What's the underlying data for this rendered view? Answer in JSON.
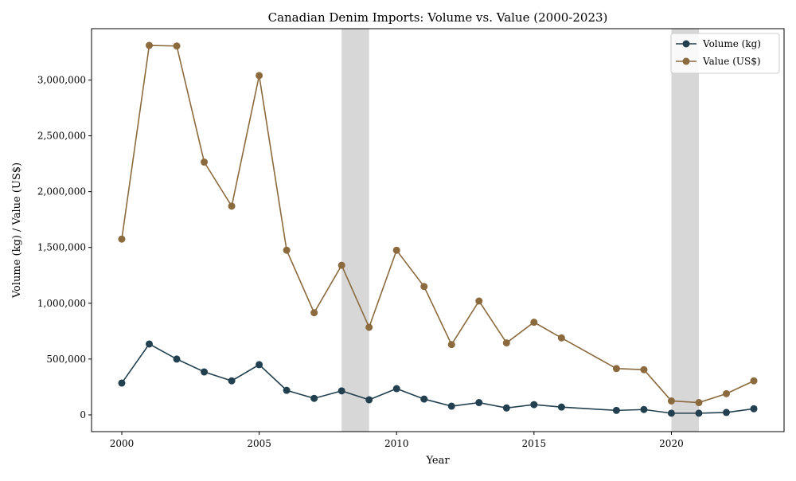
{
  "chart_data": {
    "type": "line",
    "title": "Canadian Denim Imports: Volume vs. Value (2000-2023)",
    "xlabel": "Year",
    "ylabel": "Volume (kg) / Value (US$)",
    "xlim": [
      1998.9,
      2024.1
    ],
    "ylim": [
      -150000,
      3460000
    ],
    "x_ticks": [
      2000,
      2005,
      2010,
      2015,
      2020
    ],
    "y_ticks": [
      0,
      500000,
      1000000,
      1500000,
      2000000,
      2500000,
      3000000
    ],
    "y_tick_labels": [
      "0",
      "500,000",
      "1,000,000",
      "1,500,000",
      "2,000,000",
      "2,500,000",
      "3,000,000"
    ],
    "grid": false,
    "legend_position": "top-right",
    "shaded_periods": [
      {
        "start": 2008,
        "end": 2009,
        "color": "#bdbdbd"
      },
      {
        "start": 2020,
        "end": 2021,
        "color": "#bdbdbd"
      }
    ],
    "series": [
      {
        "name": "Volume (kg)",
        "color": "#22404f",
        "x": [
          2000,
          2001,
          2002,
          2003,
          2004,
          2005,
          2006,
          2007,
          2008,
          2009,
          2010,
          2011,
          2012,
          2013,
          2014,
          2015,
          2016,
          2018,
          2019,
          2020,
          2021,
          2022,
          2023
        ],
        "values": [
          285000,
          635000,
          500000,
          385000,
          305000,
          450000,
          220000,
          148000,
          215000,
          135000,
          235000,
          142000,
          78000,
          110000,
          62000,
          92000,
          70000,
          40000,
          48000,
          15000,
          15000,
          22000,
          55000
        ]
      },
      {
        "name": "Value (US$)",
        "color": "#8b6a3e",
        "x": [
          2000,
          2001,
          2002,
          2003,
          2004,
          2005,
          2006,
          2007,
          2008,
          2009,
          2010,
          2011,
          2012,
          2013,
          2014,
          2015,
          2016,
          2018,
          2019,
          2020,
          2021,
          2022,
          2023
        ],
        "values": [
          1575000,
          3310000,
          3305000,
          2265000,
          1870000,
          3040000,
          1475000,
          915000,
          1340000,
          785000,
          1475000,
          1150000,
          630000,
          1020000,
          645000,
          830000,
          690000,
          415000,
          405000,
          125000,
          110000,
          190000,
          305000
        ]
      }
    ]
  }
}
